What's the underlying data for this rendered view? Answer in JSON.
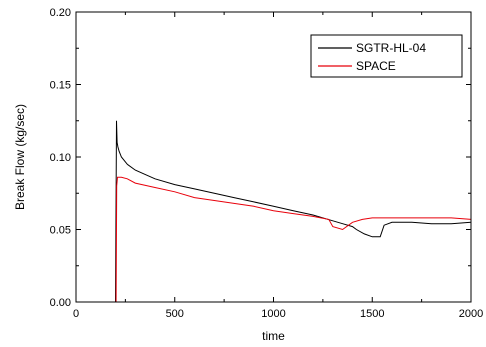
{
  "chart_data": {
    "type": "line",
    "title": "",
    "xlabel": "time",
    "ylabel": "Break Flow (kg/sec)",
    "xlim": [
      0,
      2000
    ],
    "ylim": [
      0.0,
      0.2
    ],
    "xticks": [
      0,
      500,
      1000,
      1500,
      2000
    ],
    "xtick_labels": [
      "0",
      "500",
      "1000",
      "1500",
      "2000"
    ],
    "yticks": [
      0.0,
      0.05,
      0.1,
      0.15,
      0.2
    ],
    "ytick_labels": [
      "0.00",
      "0.05",
      "0.10",
      "0.15",
      "0.20"
    ],
    "grid": false,
    "legend_position": "top-right",
    "series": [
      {
        "name": "SGTR-HL-04",
        "color": "#000000",
        "x": [
          0,
          200,
          205,
          208,
          212,
          218,
          230,
          260,
          300,
          350,
          400,
          500,
          600,
          700,
          800,
          900,
          1000,
          1100,
          1200,
          1300,
          1350,
          1400,
          1420,
          1460,
          1500,
          1540,
          1560,
          1600,
          1700,
          1800,
          1900,
          2000
        ],
        "y": [
          0.0,
          0.0,
          0.125,
          0.11,
          0.107,
          0.104,
          0.1,
          0.095,
          0.091,
          0.088,
          0.085,
          0.081,
          0.078,
          0.075,
          0.072,
          0.069,
          0.066,
          0.063,
          0.06,
          0.056,
          0.054,
          0.052,
          0.05,
          0.047,
          0.045,
          0.045,
          0.053,
          0.055,
          0.055,
          0.054,
          0.054,
          0.055
        ]
      },
      {
        "name": "SPACE",
        "color": "#e8000b",
        "x": [
          0,
          203,
          206,
          210,
          230,
          260,
          300,
          400,
          500,
          600,
          700,
          800,
          900,
          1000,
          1100,
          1200,
          1280,
          1300,
          1350,
          1400,
          1450,
          1500,
          1600,
          1700,
          1800,
          1900,
          2000
        ],
        "y": [
          0.0,
          0.0,
          0.08,
          0.086,
          0.086,
          0.085,
          0.082,
          0.079,
          0.076,
          0.072,
          0.07,
          0.068,
          0.066,
          0.063,
          0.061,
          0.059,
          0.057,
          0.052,
          0.05,
          0.055,
          0.057,
          0.058,
          0.058,
          0.058,
          0.058,
          0.058,
          0.057
        ]
      }
    ]
  }
}
